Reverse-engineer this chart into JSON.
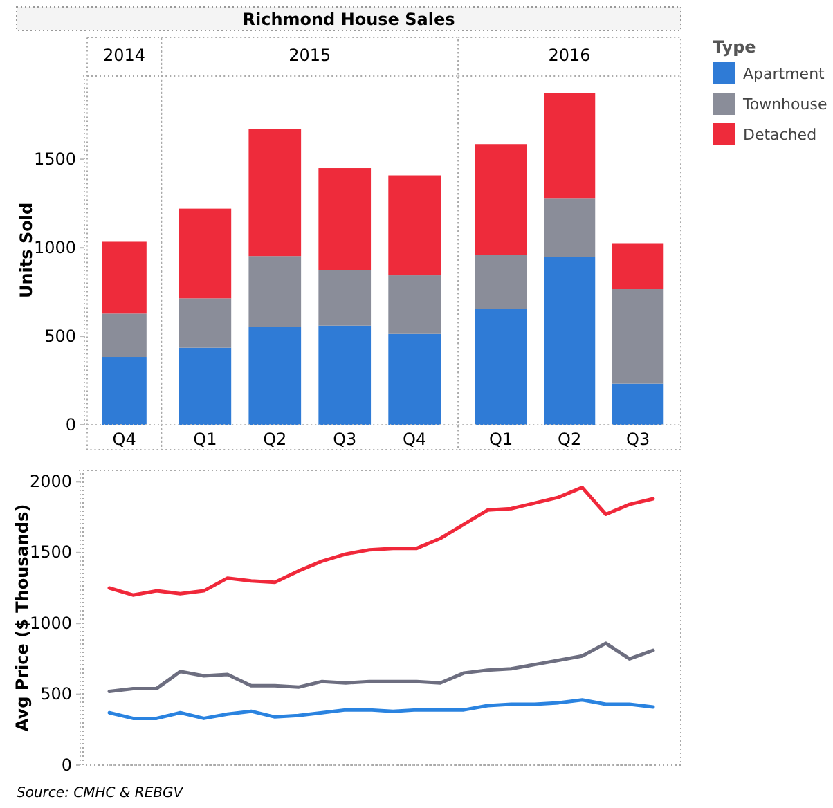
{
  "chart_data": [
    {
      "type": "other",
      "title": "Richmond House Sales"
    },
    {
      "type": "bar",
      "subtitle": "2014",
      "ylabel": "Units Sold",
      "stacked": true,
      "categories": [
        "Q4"
      ],
      "ylim": [
        0,
        1970
      ],
      "yticks": [
        0,
        500,
        1000,
        1500
      ],
      "grid": false,
      "series": [
        {
          "color": "#2f7bd6",
          "values": [
            383
          ]
        },
        {
          "color": "#8a8d99",
          "values": [
            245
          ]
        },
        {
          "color": "#ee2b3b",
          "values": [
            406
          ]
        }
      ]
    },
    {
      "type": "bar",
      "subtitle": "2015",
      "stacked": true,
      "categories": [
        "Q1",
        "Q2",
        "Q3",
        "Q4"
      ],
      "ylim": [
        0,
        1970
      ],
      "tick_labels": "x",
      "grid": false,
      "series": [
        {
          "color": "#2f7bd6",
          "values": [
            435,
            552,
            560,
            513
          ]
        },
        {
          "color": "#8a8d99",
          "values": [
            279,
            401,
            315,
            331
          ]
        },
        {
          "color": "#ee2b3b",
          "values": [
            507,
            716,
            575,
            565
          ]
        }
      ]
    },
    {
      "type": "bar",
      "subtitle": "2016",
      "stacked": true,
      "categories": [
        "Q1",
        "Q2",
        "Q3"
      ],
      "ylim": [
        0,
        1970
      ],
      "tick_labels": "x",
      "grid": false,
      "legend": "right",
      "legend_title": "Type",
      "series": [
        {
          "name": "Apartment",
          "color": "#2f7bd6",
          "values": [
            656,
            948,
            232
          ]
        },
        {
          "name": "Townhouse",
          "color": "#8a8d99",
          "values": [
            305,
            333,
            534
          ]
        },
        {
          "name": "Detached",
          "color": "#ee2b3b",
          "values": [
            625,
            594,
            260
          ]
        }
      ]
    },
    {
      "type": "line",
      "ylabel": "Avg Price ($ Thousands)",
      "categories": [
        null,
        null,
        null,
        null,
        null,
        null,
        null,
        null,
        null,
        null,
        null,
        null,
        null,
        null,
        null,
        null,
        null,
        null,
        null,
        null,
        null,
        null,
        null,
        null
      ],
      "ylim": [
        0,
        2080
      ],
      "yticks": [
        0,
        500,
        1000,
        1500,
        2000
      ],
      "tick_labels": "y",
      "grid": false,
      "line_style": "solid",
      "annotations": [
        "Source: CMHC & REBGV"
      ],
      "series": [
        {
          "color": "#f0283a",
          "values": [
            1250,
            1200,
            1230,
            1210,
            1230,
            1320,
            1300,
            1290,
            1370,
            1440,
            1490,
            1520,
            1530,
            1530,
            1600,
            1700,
            1800,
            1810,
            1850,
            1890,
            1960,
            1770,
            1840,
            1880
          ]
        },
        {
          "color": "#6d6e80",
          "values": [
            520,
            540,
            540,
            660,
            630,
            640,
            560,
            560,
            550,
            590,
            580,
            590,
            590,
            590,
            580,
            650,
            670,
            680,
            710,
            740,
            770,
            860,
            750,
            810
          ]
        },
        {
          "color": "#2a83e0",
          "values": [
            370,
            330,
            330,
            370,
            330,
            360,
            380,
            340,
            350,
            370,
            390,
            390,
            380,
            390,
            390,
            390,
            420,
            430,
            430,
            440,
            460,
            430,
            430,
            410
          ]
        }
      ]
    }
  ]
}
